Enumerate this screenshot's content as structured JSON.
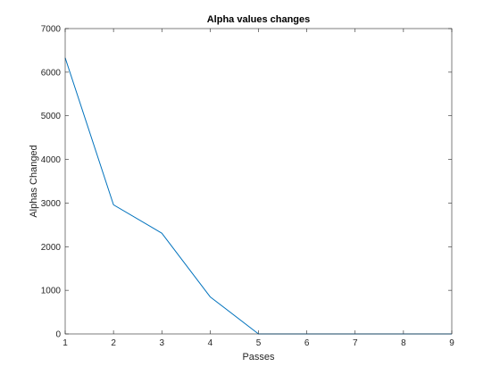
{
  "chart_data": {
    "type": "line",
    "title": "Alpha values changes",
    "xlabel": "Passes",
    "ylabel": "Alphas Changed",
    "x": [
      1,
      2,
      3,
      4,
      5,
      6,
      7,
      8,
      9
    ],
    "series": [
      {
        "values": [
          6330,
          2960,
          2310,
          850,
          0,
          0,
          0,
          0,
          0
        ],
        "color": "#0072bd"
      }
    ],
    "xlim": [
      1,
      9
    ],
    "ylim": [
      0,
      7000
    ],
    "xticks": [
      1,
      2,
      3,
      4,
      5,
      6,
      7,
      8,
      9
    ],
    "yticks": [
      0,
      1000,
      2000,
      3000,
      4000,
      5000,
      6000,
      7000
    ],
    "grid": false,
    "box": true,
    "legend": "none"
  }
}
